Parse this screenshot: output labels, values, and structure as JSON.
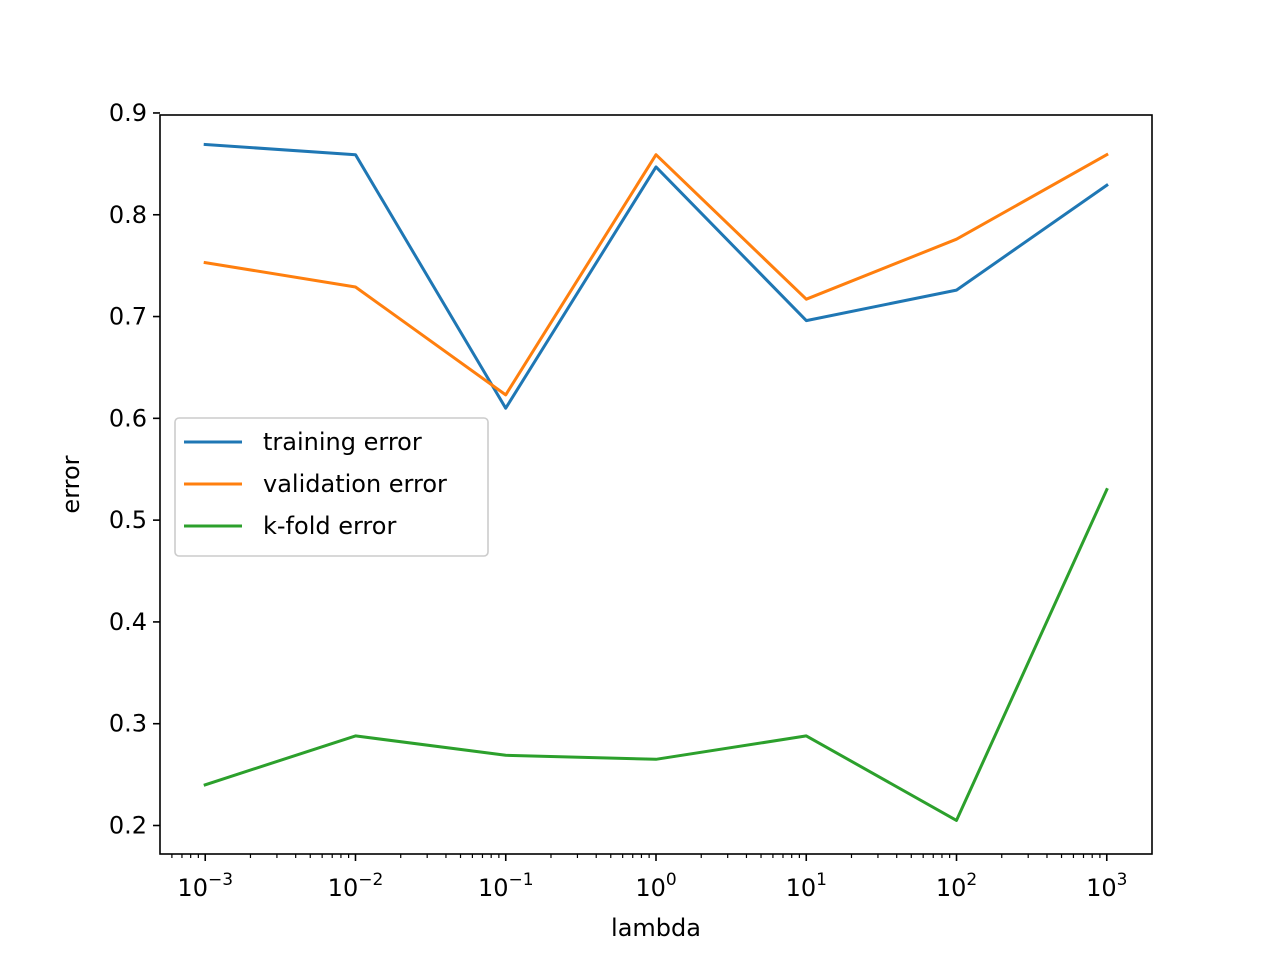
{
  "chart_data": {
    "type": "line",
    "xlabel": "lambda",
    "ylabel": "error",
    "xscale": "log",
    "xlim": [
      0.0005,
      2000
    ],
    "ylim": [
      0.172,
      0.898
    ],
    "x": [
      0.001,
      0.01,
      0.1,
      1,
      10,
      100,
      1000
    ],
    "xticks": [
      {
        "value": 0.001,
        "base": "10",
        "exp": "−3"
      },
      {
        "value": 0.01,
        "base": "10",
        "exp": "−2"
      },
      {
        "value": 0.1,
        "base": "10",
        "exp": "−1"
      },
      {
        "value": 1,
        "base": "10",
        "exp": "0"
      },
      {
        "value": 10,
        "base": "10",
        "exp": "1"
      },
      {
        "value": 100,
        "base": "10",
        "exp": "2"
      },
      {
        "value": 1000,
        "base": "10",
        "exp": "3"
      }
    ],
    "yticks": [
      {
        "value": 0.2,
        "label": "0.2"
      },
      {
        "value": 0.3,
        "label": "0.3"
      },
      {
        "value": 0.4,
        "label": "0.4"
      },
      {
        "value": 0.5,
        "label": "0.5"
      },
      {
        "value": 0.6,
        "label": "0.6"
      },
      {
        "value": 0.7,
        "label": "0.7"
      },
      {
        "value": 0.8,
        "label": "0.8"
      },
      {
        "value": 0.9,
        "label": "0.9"
      }
    ],
    "series": [
      {
        "name": "training error",
        "color": "#1f77b4",
        "values": [
          0.869,
          0.859,
          0.61,
          0.847,
          0.696,
          0.726,
          0.829
        ]
      },
      {
        "name": "validation error",
        "color": "#ff7f0e",
        "values": [
          0.753,
          0.729,
          0.623,
          0.859,
          0.717,
          0.776,
          0.859
        ]
      },
      {
        "name": "k-fold error",
        "color": "#2ca02c",
        "values": [
          0.24,
          0.288,
          0.269,
          0.265,
          0.288,
          0.205,
          0.53
        ]
      }
    ],
    "legend": {
      "position": "center-left"
    },
    "grid": false
  }
}
